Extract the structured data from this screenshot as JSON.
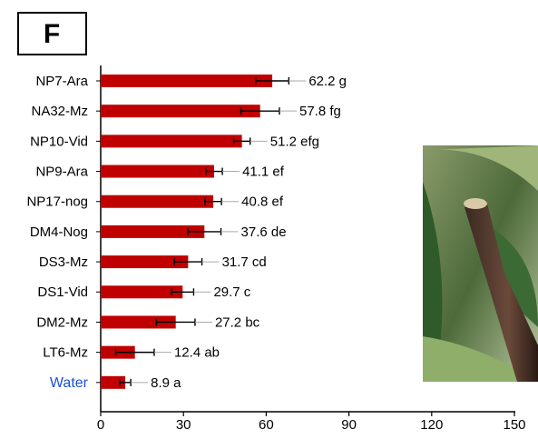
{
  "chart_data": {
    "type": "bar",
    "orientation": "horizontal",
    "panel_label": "F",
    "categories": [
      "NP7-Ara",
      "NA32-Mz",
      "NP10-Vid",
      "NP9-Ara",
      "NP17-nog",
      "DM4-Nog",
      "DS3-Mz",
      "DS1-Vid",
      "DM2-Mz",
      "LT6-Mz",
      "Water"
    ],
    "category_colors": [
      "#000000",
      "#000000",
      "#000000",
      "#000000",
      "#000000",
      "#000000",
      "#000000",
      "#000000",
      "#000000",
      "#000000",
      "#1a4fd6"
    ],
    "values": [
      62.2,
      57.8,
      51.2,
      41.1,
      40.8,
      37.6,
      31.7,
      29.7,
      27.2,
      12.4,
      8.9
    ],
    "value_labels": [
      "62.2 g",
      "57.8 fg",
      "51.2 efg",
      "41.1 ef",
      "40.8 ef",
      "37.6 de",
      "31.7 cd",
      "29.7 c",
      "27.2 bc",
      "12.4 ab",
      "8.9 a"
    ],
    "errors": [
      6,
      7,
      3,
      3,
      3,
      6,
      5,
      4,
      7,
      7,
      2
    ],
    "color": "#c00000",
    "xlim": [
      0,
      150
    ],
    "xticks": [
      0,
      30,
      60,
      90,
      120,
      150
    ]
  }
}
